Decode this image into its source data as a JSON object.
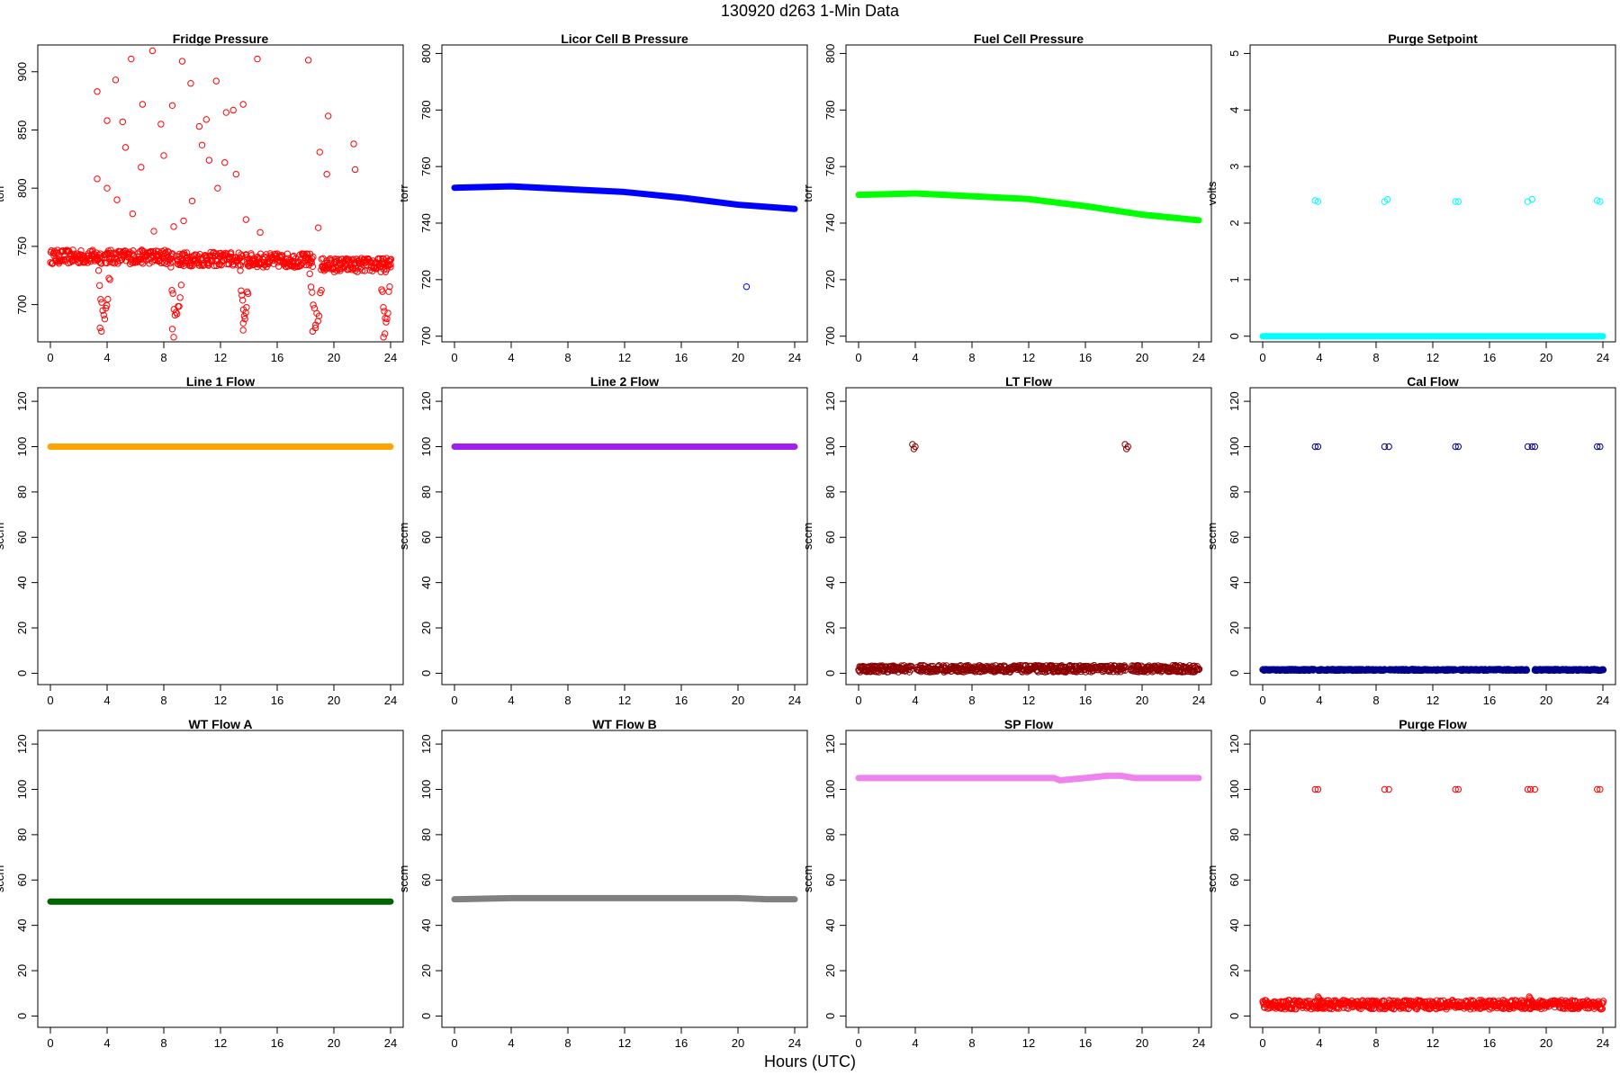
{
  "page": {
    "title": "130920   d263   1-Min Data",
    "xlabel": "Hours (UTC)"
  },
  "chart_data": [
    {
      "type": "scatter",
      "title": "Fridge Pressure",
      "ylabel": "torr",
      "color": "#ff0000",
      "xlim": [
        0,
        24
      ],
      "xticks": [
        0,
        4,
        8,
        12,
        16,
        20,
        24
      ],
      "ylim": [
        668,
        923
      ],
      "yticks": [
        700,
        750,
        800,
        850,
        900
      ],
      "baseline": {
        "segments": [
          [
            0,
            3.6,
            741
          ],
          [
            3.8,
            8.6,
            741
          ],
          [
            8.9,
            13.5,
            739
          ],
          [
            13.8,
            18.5,
            738
          ],
          [
            19.1,
            24,
            734
          ]
        ],
        "spread": 6
      },
      "points": [
        [
          3.3,
          883
        ],
        [
          3.3,
          808
        ],
        [
          4.0,
          800
        ],
        [
          4.0,
          858
        ],
        [
          4.6,
          893
        ],
        [
          4.7,
          790
        ],
        [
          5.1,
          857
        ],
        [
          5.3,
          835
        ],
        [
          5.7,
          911
        ],
        [
          5.8,
          778
        ],
        [
          6.4,
          818
        ],
        [
          6.5,
          872
        ],
        [
          7.2,
          918
        ],
        [
          7.3,
          763
        ],
        [
          7.8,
          855
        ],
        [
          8.0,
          828
        ],
        [
          8.6,
          871
        ],
        [
          8.7,
          767
        ],
        [
          9.3,
          909
        ],
        [
          9.4,
          772
        ],
        [
          9.9,
          890
        ],
        [
          10.0,
          789
        ],
        [
          10.5,
          853
        ],
        [
          10.7,
          837
        ],
        [
          11.0,
          859
        ],
        [
          11.2,
          824
        ],
        [
          11.7,
          892
        ],
        [
          11.8,
          800
        ],
        [
          12.3,
          822
        ],
        [
          12.4,
          865
        ],
        [
          12.9,
          867
        ],
        [
          13.1,
          812
        ],
        [
          13.6,
          872
        ],
        [
          13.8,
          773
        ],
        [
          14.6,
          911
        ],
        [
          14.8,
          762
        ],
        [
          18.2,
          910
        ],
        [
          18.9,
          766
        ],
        [
          19.0,
          831
        ],
        [
          19.5,
          812
        ],
        [
          19.6,
          862
        ],
        [
          21.4,
          838
        ],
        [
          21.5,
          816
        ],
        [
          3.5,
          680
        ],
        [
          3.6,
          677
        ],
        [
          8.6,
          679
        ],
        [
          8.7,
          672
        ],
        [
          13.6,
          678
        ],
        [
          13.6,
          684
        ],
        [
          18.5,
          677
        ],
        [
          18.7,
          680
        ],
        [
          23.5,
          672
        ],
        [
          23.6,
          675
        ]
      ],
      "dips": [
        [
          3.4,
          4.2
        ],
        [
          8.5,
          9.3
        ],
        [
          13.4,
          14.0
        ],
        [
          18.3,
          19.2
        ],
        [
          23.3,
          24.0
        ]
      ]
    },
    {
      "type": "line",
      "title": "Licor Cell B Pressure",
      "ylabel": "torr",
      "color": "#0000ff",
      "xlim": [
        0,
        24
      ],
      "xticks": [
        0,
        4,
        8,
        12,
        16,
        20,
        24
      ],
      "ylim": [
        698,
        803
      ],
      "yticks": [
        700,
        720,
        740,
        760,
        780,
        800
      ],
      "x": [
        0,
        4,
        8,
        12,
        16,
        20,
        24
      ],
      "y": [
        752.5,
        753,
        752,
        751,
        749,
        746.5,
        745
      ],
      "outliers": [
        [
          20.6,
          717.5
        ]
      ]
    },
    {
      "type": "line",
      "title": "Fuel Cell Pressure",
      "ylabel": "torr",
      "color": "#00ff00",
      "xlim": [
        0,
        24
      ],
      "xticks": [
        0,
        4,
        8,
        12,
        16,
        20,
        24
      ],
      "ylim": [
        698,
        803
      ],
      "yticks": [
        700,
        720,
        740,
        760,
        780,
        800
      ],
      "x": [
        0,
        4,
        8,
        12,
        16,
        20,
        24
      ],
      "y": [
        750,
        750.5,
        749.5,
        748.5,
        746,
        743,
        741
      ]
    },
    {
      "type": "scatter",
      "title": "Purge Setpoint",
      "ylabel": "volts",
      "color": "#00ffff",
      "xlim": [
        0,
        24
      ],
      "xticks": [
        0,
        4,
        8,
        12,
        16,
        20,
        24
      ],
      "ylim": [
        -0.1,
        5.15
      ],
      "yticks": [
        0,
        1,
        2,
        3,
        4,
        5
      ],
      "baseline": {
        "segments": [
          [
            0,
            24,
            0
          ]
        ],
        "spread": 0
      },
      "points": [
        [
          3.7,
          2.4
        ],
        [
          3.9,
          2.38
        ],
        [
          8.6,
          2.38
        ],
        [
          8.8,
          2.42
        ],
        [
          13.6,
          2.38
        ],
        [
          13.8,
          2.38
        ],
        [
          18.7,
          2.38
        ],
        [
          19.0,
          2.42
        ],
        [
          23.6,
          2.4
        ],
        [
          23.8,
          2.38
        ]
      ]
    },
    {
      "type": "line",
      "title": "Line 1 Flow",
      "ylabel": "sccm",
      "color": "#ffa500",
      "xlim": [
        0,
        24
      ],
      "xticks": [
        0,
        4,
        8,
        12,
        16,
        20,
        24
      ],
      "ylim": [
        -5,
        126
      ],
      "yticks": [
        0,
        20,
        40,
        60,
        80,
        100,
        120
      ],
      "x": [
        0,
        24
      ],
      "y": [
        100,
        100
      ]
    },
    {
      "type": "line",
      "title": "Line 2 Flow",
      "ylabel": "sccm",
      "color": "#a020f0",
      "xlim": [
        0,
        24
      ],
      "xticks": [
        0,
        4,
        8,
        12,
        16,
        20,
        24
      ],
      "ylim": [
        -5,
        126
      ],
      "yticks": [
        0,
        20,
        40,
        60,
        80,
        100,
        120
      ],
      "x": [
        0,
        24
      ],
      "y": [
        100,
        100
      ]
    },
    {
      "type": "scatter",
      "title": "LT Flow",
      "ylabel": "sccm",
      "color": "#8b0000",
      "xlim": [
        0,
        24
      ],
      "xticks": [
        0,
        4,
        8,
        12,
        16,
        20,
        24
      ],
      "ylim": [
        -5,
        126
      ],
      "yticks": [
        0,
        20,
        40,
        60,
        80,
        100,
        120
      ],
      "baseline": {
        "segments": [
          [
            0,
            3.7,
            2
          ],
          [
            4.1,
            18.8,
            2
          ],
          [
            19.2,
            24,
            2
          ]
        ],
        "spread": 1.5
      },
      "points": [
        [
          3.8,
          101
        ],
        [
          3.9,
          99
        ],
        [
          4.0,
          100
        ],
        [
          18.8,
          101
        ],
        [
          18.9,
          99
        ],
        [
          19.0,
          100
        ]
      ]
    },
    {
      "type": "scatter",
      "title": "Cal Flow",
      "ylabel": "sccm",
      "color": "#00008b",
      "xlim": [
        0,
        24
      ],
      "xticks": [
        0,
        4,
        8,
        12,
        16,
        20,
        24
      ],
      "ylim": [
        -5,
        126
      ],
      "yticks": [
        0,
        20,
        40,
        60,
        80,
        100,
        120
      ],
      "baseline": {
        "segments": [
          [
            0,
            3.6,
            1.5
          ],
          [
            3.9,
            8.6,
            1.5
          ],
          [
            8.9,
            13.6,
            1.5
          ],
          [
            13.9,
            18.6,
            1.5
          ],
          [
            19.2,
            24,
            1.5
          ]
        ],
        "spread": 0.3
      },
      "points": [
        [
          3.7,
          100
        ],
        [
          3.9,
          100
        ],
        [
          8.6,
          100
        ],
        [
          8.9,
          100
        ],
        [
          13.6,
          100
        ],
        [
          13.8,
          100
        ],
        [
          18.7,
          100
        ],
        [
          19.0,
          100
        ],
        [
          19.2,
          100
        ],
        [
          23.6,
          100
        ],
        [
          23.8,
          100
        ]
      ]
    },
    {
      "type": "line",
      "title": "WT Flow A",
      "ylabel": "sccm",
      "color": "#006400",
      "xlim": [
        0,
        24
      ],
      "xticks": [
        0,
        4,
        8,
        12,
        16,
        20,
        24
      ],
      "ylim": [
        -5,
        126
      ],
      "yticks": [
        0,
        20,
        40,
        60,
        80,
        100,
        120
      ],
      "x": [
        0,
        24
      ],
      "y": [
        50.5,
        50.5
      ]
    },
    {
      "type": "line",
      "title": "WT Flow B",
      "ylabel": "sccm",
      "color": "#808080",
      "xlim": [
        0,
        24
      ],
      "xticks": [
        0,
        4,
        8,
        12,
        16,
        20,
        24
      ],
      "ylim": [
        -5,
        126
      ],
      "yticks": [
        0,
        20,
        40,
        60,
        80,
        100,
        120
      ],
      "x": [
        0,
        4,
        12,
        20,
        22,
        24
      ],
      "y": [
        51.5,
        52,
        52,
        52,
        51.5,
        51.5
      ]
    },
    {
      "type": "line",
      "title": "SP Flow",
      "ylabel": "sccm",
      "color": "#ee82ee",
      "xlim": [
        0,
        24
      ],
      "xticks": [
        0,
        4,
        8,
        12,
        16,
        20,
        24
      ],
      "ylim": [
        -5,
        126
      ],
      "yticks": [
        0,
        20,
        40,
        60,
        80,
        100,
        120
      ],
      "x": [
        0,
        4,
        8,
        13.8,
        14.2,
        16,
        17.5,
        18.5,
        19.5,
        24
      ],
      "y": [
        105,
        105,
        105,
        105,
        104,
        105,
        106,
        106,
        105,
        105
      ]
    },
    {
      "type": "scatter",
      "title": "Purge Flow",
      "ylabel": "sccm",
      "color": "#ff0000",
      "xlim": [
        0,
        24
      ],
      "xticks": [
        0,
        4,
        8,
        12,
        16,
        20,
        24
      ],
      "ylim": [
        -5,
        126
      ],
      "yticks": [
        0,
        20,
        40,
        60,
        80,
        100,
        120
      ],
      "baseline": {
        "segments": [
          [
            0,
            24,
            5
          ]
        ],
        "spread": 2
      },
      "bumps": [
        [
          3.9,
          8.5
        ],
        [
          18.8,
          8.5
        ]
      ],
      "points": [
        [
          3.7,
          100
        ],
        [
          3.9,
          100
        ],
        [
          8.6,
          100
        ],
        [
          8.9,
          100
        ],
        [
          13.6,
          100
        ],
        [
          13.8,
          100
        ],
        [
          18.7,
          100
        ],
        [
          18.9,
          100
        ],
        [
          19.2,
          100
        ],
        [
          23.6,
          100
        ],
        [
          23.8,
          100
        ]
      ]
    }
  ]
}
